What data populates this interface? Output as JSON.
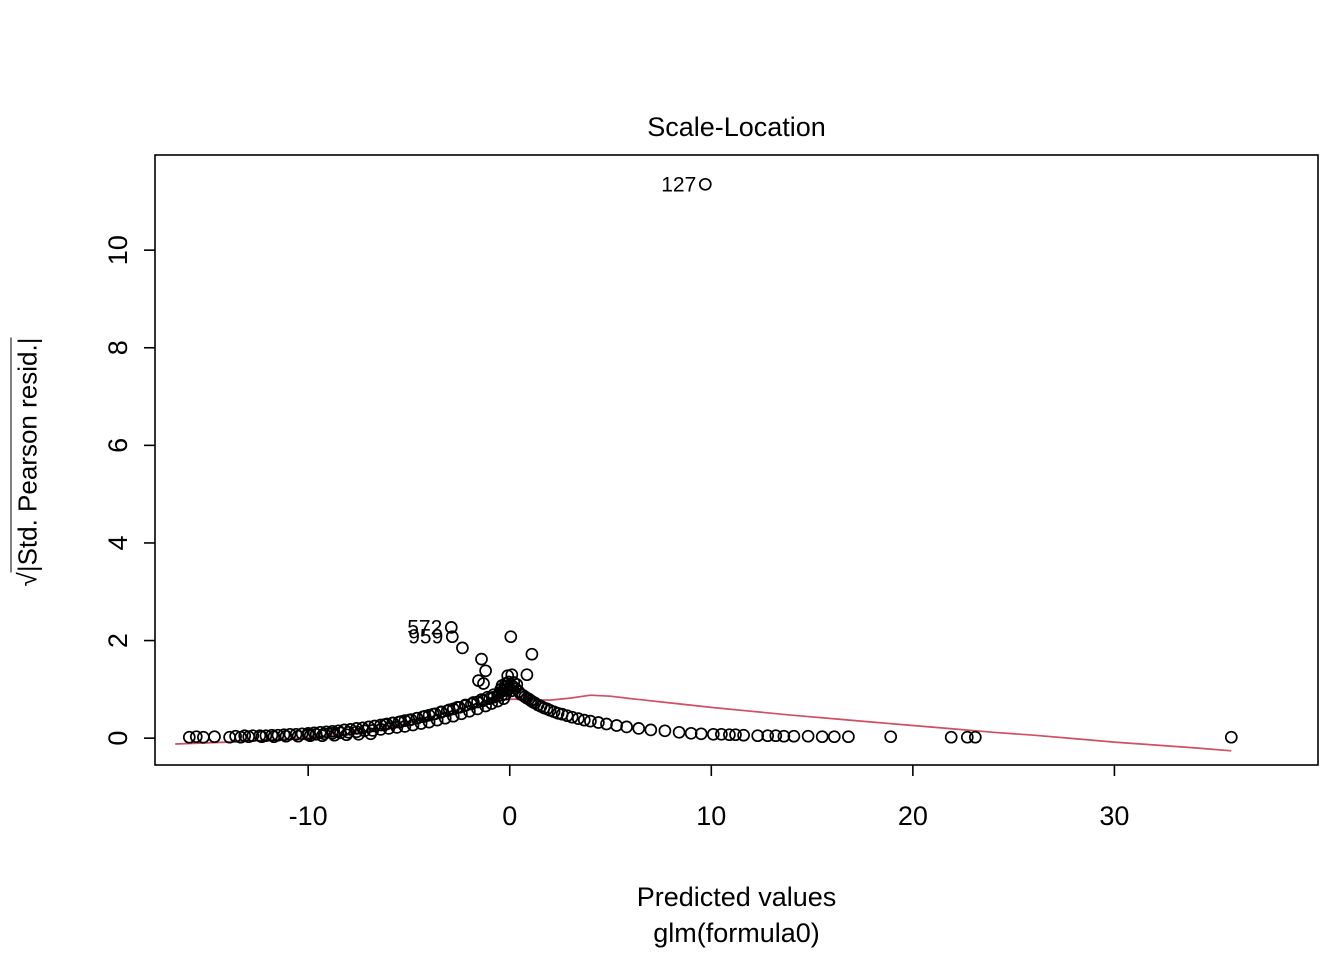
{
  "title": "Scale-Location",
  "x_axis": {
    "label": "Predicted values",
    "sublabel": "glm(formula0)"
  },
  "y_axis": {
    "sqrt_symbol": "√",
    "body": "|Std. Pearson resid.|"
  },
  "colors": {
    "points": "#000000",
    "smooth_line": "#d04f63",
    "frame": "#000000"
  },
  "chart_data": {
    "type": "scatter",
    "title": "Scale-Location",
    "xlabel": "Predicted values",
    "xsublabel": "glm(formula0)",
    "ylabel": "sqrt(|Std. Pearson resid.|)",
    "grid": false,
    "x_ticks": [
      -10,
      0,
      10,
      20,
      30
    ],
    "y_ticks": [
      0,
      2,
      4,
      6,
      8,
      10
    ],
    "x_domain": [
      -17.6,
      40.1
    ],
    "y_domain": [
      -0.55,
      11.95
    ],
    "point_color": "#000000",
    "line_color": "#d04f63",
    "labeled_points": [
      {
        "label": "127",
        "x": 9.7,
        "y": 11.35
      },
      {
        "label": "572",
        "x": -2.9,
        "y": 2.27
      },
      {
        "label": "959",
        "x": -2.85,
        "y": 2.08
      }
    ],
    "smooth_line": [
      [
        -16.6,
        -0.12
      ],
      [
        -14,
        -0.08
      ],
      [
        -12,
        -0.04
      ],
      [
        -10,
        0.01
      ],
      [
        -8,
        0.09
      ],
      [
        -6,
        0.21
      ],
      [
        -4,
        0.42
      ],
      [
        -3,
        0.54
      ],
      [
        -2,
        0.66
      ],
      [
        -1,
        0.76
      ],
      [
        0,
        0.8
      ],
      [
        1,
        0.79
      ],
      [
        2,
        0.78
      ],
      [
        3,
        0.82
      ],
      [
        4,
        0.88
      ],
      [
        5,
        0.86
      ],
      [
        6,
        0.81
      ],
      [
        8,
        0.72
      ],
      [
        10,
        0.63
      ],
      [
        12,
        0.55
      ],
      [
        14,
        0.47
      ],
      [
        16,
        0.4
      ],
      [
        18,
        0.33
      ],
      [
        20,
        0.26
      ],
      [
        22,
        0.19
      ],
      [
        24,
        0.12
      ],
      [
        26,
        0.06
      ],
      [
        28,
        -0.01
      ],
      [
        30,
        -0.08
      ],
      [
        32,
        -0.14
      ],
      [
        34,
        -0.2
      ],
      [
        35.8,
        -0.26
      ]
    ],
    "points": [
      [
        -15.9,
        0.02
      ],
      [
        -15.55,
        0.03
      ],
      [
        -15.2,
        0.02
      ],
      [
        -14.65,
        0.03
      ],
      [
        -13.9,
        0.02
      ],
      [
        -13.6,
        0.04
      ],
      [
        -13.35,
        0.02
      ],
      [
        -13.15,
        0.05
      ],
      [
        -12.95,
        0.03
      ],
      [
        -12.75,
        0.05
      ],
      [
        -12.4,
        0.05
      ],
      [
        -12.1,
        0.05
      ],
      [
        -11.8,
        0.06
      ],
      [
        -11.5,
        0.06
      ],
      [
        -11.2,
        0.07
      ],
      [
        -10.9,
        0.08
      ],
      [
        -10.6,
        0.08
      ],
      [
        -10.3,
        0.09
      ],
      [
        -10.0,
        0.1
      ],
      [
        -9.7,
        0.11
      ],
      [
        -9.4,
        0.12
      ],
      [
        -9.1,
        0.13
      ],
      [
        -8.8,
        0.14
      ],
      [
        -8.5,
        0.15
      ],
      [
        -8.2,
        0.17
      ],
      [
        -7.9,
        0.18
      ],
      [
        -7.6,
        0.2
      ],
      [
        -7.3,
        0.21
      ],
      [
        -7.0,
        0.23
      ],
      [
        -6.7,
        0.25
      ],
      [
        -6.4,
        0.27
      ],
      [
        -6.1,
        0.29
      ],
      [
        -5.8,
        0.31
      ],
      [
        -5.5,
        0.33
      ],
      [
        -5.2,
        0.36
      ],
      [
        -4.9,
        0.38
      ],
      [
        -4.6,
        0.41
      ],
      [
        -4.3,
        0.44
      ],
      [
        -4.0,
        0.47
      ],
      [
        -3.7,
        0.5
      ],
      [
        -3.4,
        0.53
      ],
      [
        -3.1,
        0.56
      ],
      [
        -2.8,
        0.6
      ],
      [
        -2.5,
        0.63
      ],
      [
        -2.2,
        0.67
      ],
      [
        -1.9,
        0.7
      ],
      [
        -1.6,
        0.74
      ],
      [
        -1.3,
        0.77
      ],
      [
        -1.0,
        0.81
      ],
      [
        -0.8,
        0.84
      ],
      [
        -0.6,
        0.86
      ],
      [
        -0.4,
        0.88
      ],
      [
        -0.2,
        0.9
      ],
      [
        -10.0,
        0.07
      ],
      [
        -9.6,
        0.08
      ],
      [
        -9.2,
        0.09
      ],
      [
        -8.8,
        0.1
      ],
      [
        -8.4,
        0.11
      ],
      [
        -8.0,
        0.12
      ],
      [
        -7.6,
        0.13
      ],
      [
        -7.2,
        0.15
      ],
      [
        -6.8,
        0.16
      ],
      [
        -6.4,
        0.18
      ],
      [
        -6.0,
        0.2
      ],
      [
        -5.6,
        0.22
      ],
      [
        -5.2,
        0.24
      ],
      [
        -4.8,
        0.27
      ],
      [
        -4.4,
        0.3
      ],
      [
        -4.0,
        0.33
      ],
      [
        -3.6,
        0.37
      ],
      [
        -3.2,
        0.41
      ],
      [
        -2.8,
        0.45
      ],
      [
        -2.4,
        0.5
      ],
      [
        -2.0,
        0.55
      ],
      [
        -1.6,
        0.6
      ],
      [
        -1.2,
        0.66
      ],
      [
        -0.9,
        0.71
      ],
      [
        -0.6,
        0.76
      ],
      [
        -0.3,
        0.81
      ],
      [
        -6.2,
        0.28
      ],
      [
        -5.8,
        0.31
      ],
      [
        -5.4,
        0.34
      ],
      [
        -5.0,
        0.37
      ],
      [
        -4.6,
        0.41
      ],
      [
        -4.2,
        0.45
      ],
      [
        -3.8,
        0.49
      ],
      [
        -3.4,
        0.54
      ],
      [
        -3.0,
        0.58
      ],
      [
        -2.6,
        0.63
      ],
      [
        -2.2,
        0.68
      ],
      [
        -1.8,
        0.73
      ],
      [
        -1.4,
        0.79
      ],
      [
        -1.1,
        0.84
      ],
      [
        -0.8,
        0.89
      ],
      [
        -0.5,
        0.93
      ],
      [
        -0.3,
        0.97
      ],
      [
        -12.3,
        0.03
      ],
      [
        -11.7,
        0.03
      ],
      [
        -11.1,
        0.04
      ],
      [
        -10.5,
        0.04
      ],
      [
        -9.9,
        0.05
      ],
      [
        -9.3,
        0.05
      ],
      [
        -8.7,
        0.06
      ],
      [
        -8.1,
        0.07
      ],
      [
        -7.5,
        0.08
      ],
      [
        -6.9,
        0.09
      ],
      [
        -0.45,
        1.0
      ],
      [
        -0.38,
        1.08
      ],
      [
        -0.3,
        0.98
      ],
      [
        -0.25,
        1.05
      ],
      [
        -0.2,
        1.12
      ],
      [
        -0.15,
        1.0
      ],
      [
        -0.1,
        1.08
      ],
      [
        -0.05,
        1.15
      ],
      [
        0.0,
        1.02
      ],
      [
        0.05,
        1.1
      ],
      [
        0.1,
        0.97
      ],
      [
        0.15,
        1.06
      ],
      [
        0.2,
        1.14
      ],
      [
        0.28,
        1.02
      ],
      [
        0.35,
        1.1
      ],
      [
        0.1,
        1.3
      ],
      [
        -0.1,
        1.28
      ],
      [
        -2.35,
        1.85
      ],
      [
        -1.4,
        1.62
      ],
      [
        -1.2,
        1.38
      ],
      [
        0.05,
        2.08
      ],
      [
        1.1,
        1.72
      ],
      [
        0.85,
        1.3
      ],
      [
        -1.55,
        1.18
      ],
      [
        -1.3,
        1.12
      ],
      [
        0.45,
        0.95
      ],
      [
        0.55,
        0.9
      ],
      [
        0.65,
        0.88
      ],
      [
        0.75,
        0.85
      ],
      [
        0.85,
        0.82
      ],
      [
        0.95,
        0.8
      ],
      [
        1.05,
        0.77
      ],
      [
        1.15,
        0.74
      ],
      [
        1.25,
        0.72
      ],
      [
        1.4,
        0.68
      ],
      [
        1.55,
        0.65
      ],
      [
        1.7,
        0.62
      ],
      [
        1.85,
        0.6
      ],
      [
        2.0,
        0.57
      ],
      [
        2.2,
        0.54
      ],
      [
        2.4,
        0.51
      ],
      [
        2.6,
        0.49
      ],
      [
        2.85,
        0.46
      ],
      [
        3.1,
        0.43
      ],
      [
        3.4,
        0.4
      ],
      [
        3.7,
        0.37
      ],
      [
        4.0,
        0.35
      ],
      [
        4.4,
        0.32
      ],
      [
        4.8,
        0.29
      ],
      [
        5.3,
        0.26
      ],
      [
        5.8,
        0.23
      ],
      [
        6.4,
        0.2
      ],
      [
        7.0,
        0.17
      ],
      [
        7.7,
        0.15
      ],
      [
        8.4,
        0.12
      ],
      [
        9.0,
        0.1
      ],
      [
        9.5,
        0.09
      ],
      [
        10.1,
        0.08
      ],
      [
        10.5,
        0.08
      ],
      [
        10.9,
        0.07
      ],
      [
        11.2,
        0.07
      ],
      [
        11.6,
        0.06
      ],
      [
        12.3,
        0.05
      ],
      [
        12.8,
        0.05
      ],
      [
        13.2,
        0.05
      ],
      [
        13.6,
        0.04
      ],
      [
        14.1,
        0.04
      ],
      [
        14.8,
        0.04
      ],
      [
        15.5,
        0.03
      ],
      [
        16.1,
        0.03
      ],
      [
        16.8,
        0.03
      ],
      [
        18.9,
        0.03
      ],
      [
        21.9,
        0.02
      ],
      [
        22.7,
        0.02
      ],
      [
        23.1,
        0.02
      ],
      [
        35.8,
        0.02
      ]
    ]
  }
}
